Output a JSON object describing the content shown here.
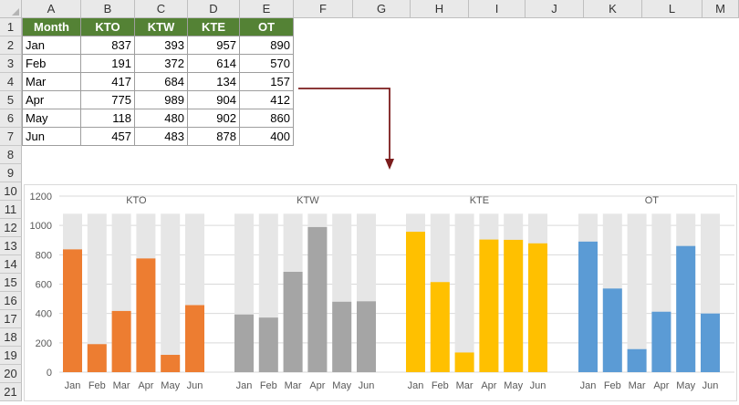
{
  "sheet": {
    "column_headers": [
      "A",
      "B",
      "C",
      "D",
      "E",
      "F",
      "G",
      "H",
      "I",
      "J",
      "K",
      "L",
      "M"
    ],
    "row_headers": [
      "1",
      "2",
      "3",
      "4",
      "5",
      "6",
      "7",
      "8",
      "9",
      "10",
      "11",
      "12",
      "13",
      "14",
      "15",
      "16",
      "17",
      "18",
      "19",
      "20",
      "21"
    ],
    "table": {
      "header": [
        "Month",
        "KTO",
        "KTW",
        "KTE",
        "OT"
      ],
      "rows": [
        [
          "Jan",
          "837",
          "393",
          "957",
          "890"
        ],
        [
          "Feb",
          "191",
          "372",
          "614",
          "570"
        ],
        [
          "Mar",
          "417",
          "684",
          "134",
          "157"
        ],
        [
          "Apr",
          "775",
          "989",
          "904",
          "412"
        ],
        [
          "May",
          "118",
          "480",
          "902",
          "860"
        ],
        [
          "Jun",
          "457",
          "483",
          "878",
          "400"
        ]
      ]
    },
    "header_fill": "#548235"
  },
  "arrow_color": "#7b1c1c",
  "chart_data": {
    "type": "bar",
    "ylim": [
      0,
      1200
    ],
    "yticks": [
      "0",
      "200",
      "400",
      "600",
      "800",
      "1000",
      "1200"
    ],
    "background_value": 1080,
    "background_color": "#e6e6e6",
    "grid": true,
    "categories": [
      "Jan",
      "Feb",
      "Mar",
      "Apr",
      "May",
      "Jun"
    ],
    "series": [
      {
        "name": "KTO",
        "color": "#ed7d31",
        "values": [
          837,
          191,
          417,
          775,
          118,
          457
        ]
      },
      {
        "name": "KTW",
        "color": "#a5a5a5",
        "values": [
          393,
          372,
          684,
          989,
          480,
          483
        ]
      },
      {
        "name": "KTE",
        "color": "#ffc000",
        "values": [
          957,
          614,
          134,
          904,
          902,
          878
        ]
      },
      {
        "name": "OT",
        "color": "#5b9bd5",
        "values": [
          890,
          570,
          157,
          412,
          860,
          400
        ]
      }
    ]
  }
}
